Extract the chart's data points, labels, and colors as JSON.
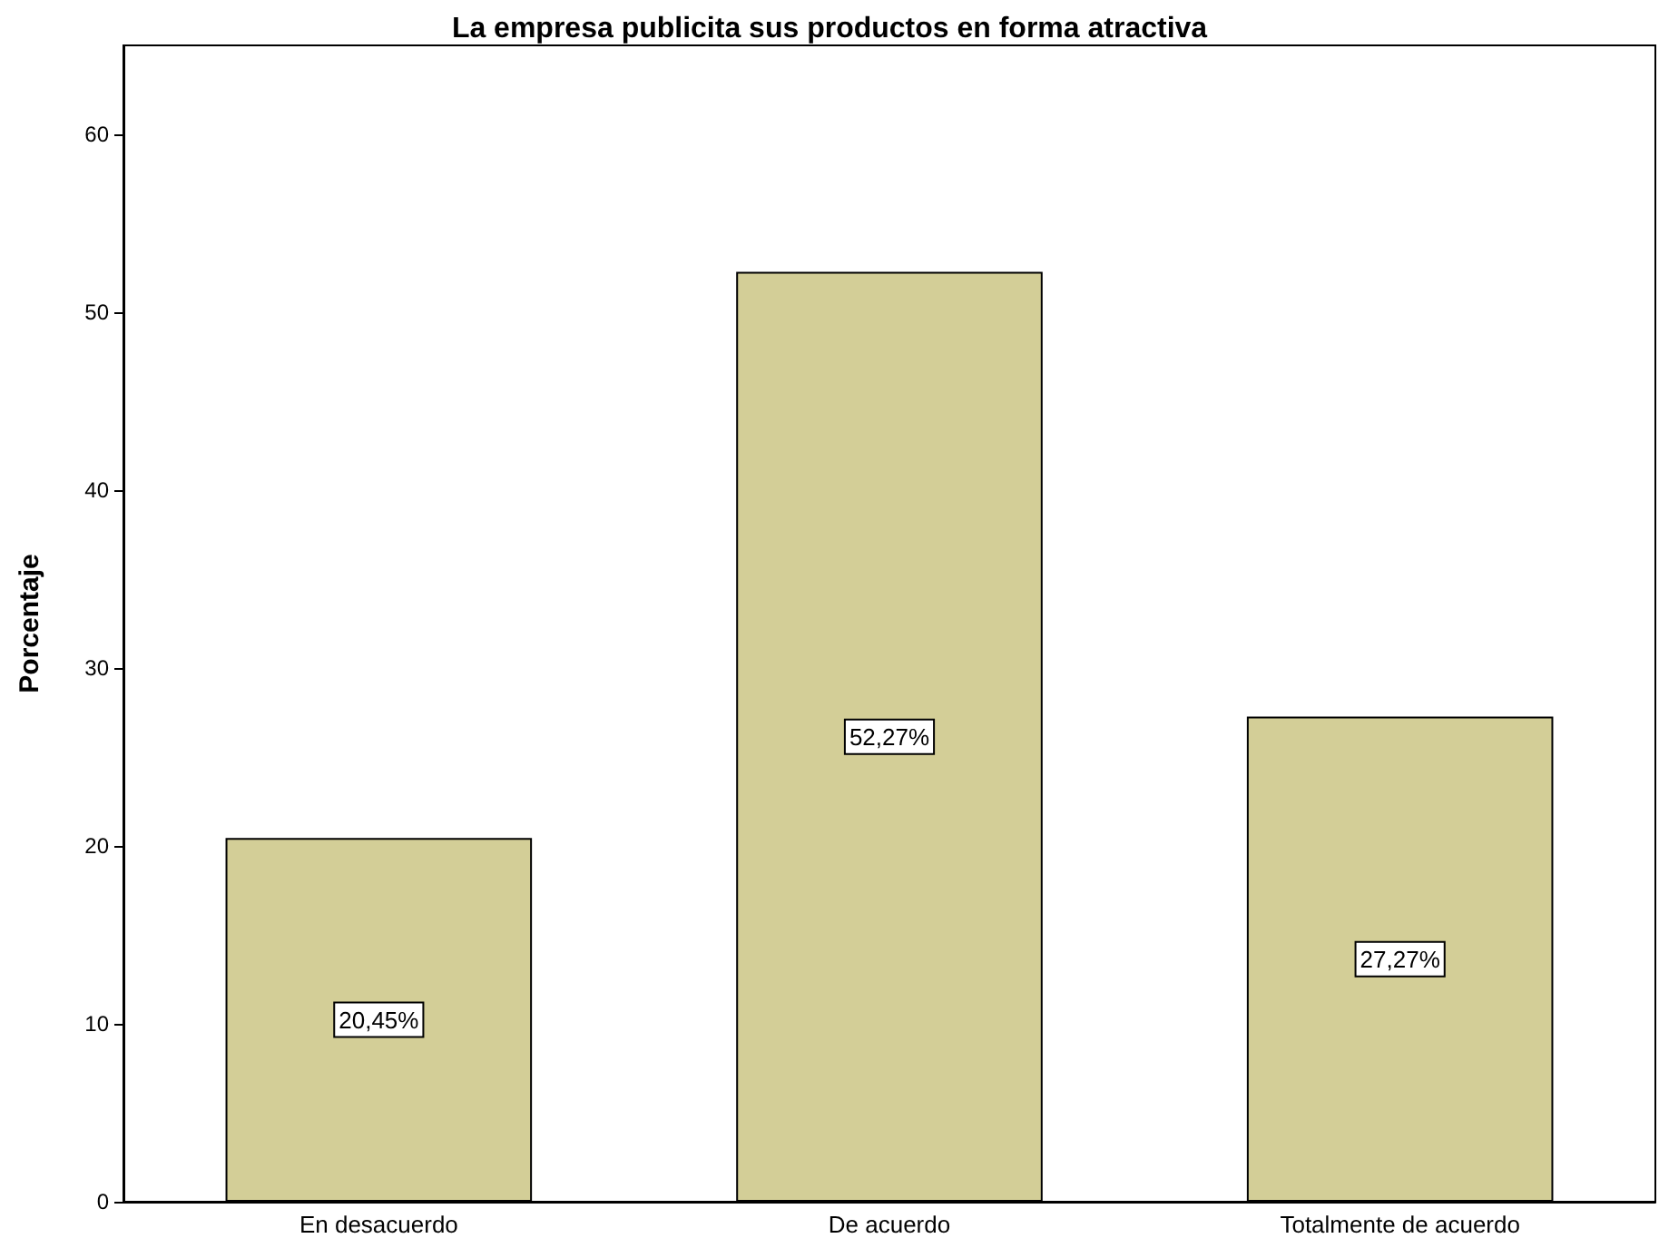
{
  "chart_data": {
    "type": "bar",
    "title": "La empresa publicita sus productos en forma atractiva",
    "ylabel": "Porcentaje",
    "categories": [
      "En desacuerdo",
      "De acuerdo",
      "Totalmente de acuerdo"
    ],
    "values": [
      20.45,
      52.27,
      27.27
    ],
    "value_labels": [
      "20,45%",
      "52,27%",
      "27,27%"
    ],
    "color": "#d3ce97",
    "ylim": [
      0,
      65
    ],
    "yticks": [
      0,
      10,
      20,
      30,
      40,
      50,
      60
    ],
    "grid": false
  }
}
